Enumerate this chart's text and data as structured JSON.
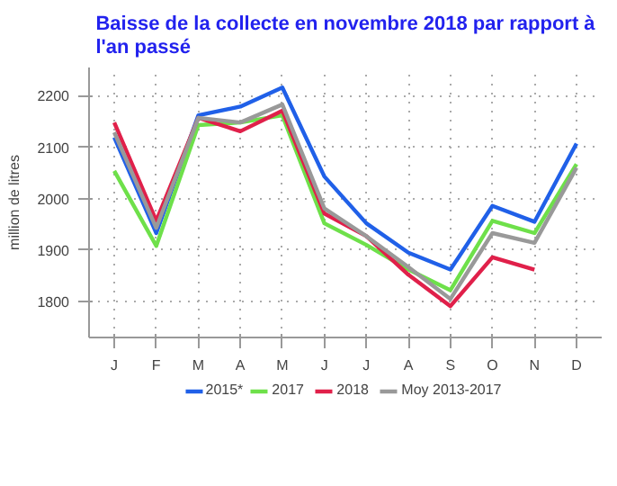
{
  "chart_data": {
    "type": "line",
    "title": "Baisse de la collecte en novembre 2018 par rapport à l'an passé",
    "ylabel": "million de litres",
    "categories": [
      "J",
      "F",
      "M",
      "A",
      "M",
      "J",
      "J",
      "A",
      "S",
      "O",
      "N",
      "D"
    ],
    "series": [
      {
        "name": "2015*",
        "color": "#2060e8",
        "values": [
          2119,
          1933,
          2162,
          2179,
          2216,
          2043,
          1952,
          1895,
          1862,
          1986,
          1955,
          2107
        ]
      },
      {
        "name": "2017",
        "color": "#6ee04a",
        "values": [
          2054,
          1908,
          2143,
          2148,
          2162,
          1952,
          1910,
          1862,
          1822,
          1957,
          1933,
          2067
        ]
      },
      {
        "name": "2018",
        "color": "#e0204a",
        "values": [
          2148,
          1957,
          2157,
          2131,
          2171,
          1971,
          1927,
          1852,
          1791,
          1886,
          1862,
          null
        ]
      },
      {
        "name": "Moy 2013-2017",
        "color": "#999999",
        "values": [
          2129,
          1943,
          2157,
          2148,
          2183,
          1981,
          1927,
          1867,
          1805,
          1933,
          1914,
          2060
        ]
      }
    ],
    "ylim": [
      1730,
      2255
    ],
    "yticks": [
      1800,
      1900,
      2000,
      2100,
      2200
    ],
    "grid": true,
    "legend": "bottom",
    "line_style": "solid"
  }
}
